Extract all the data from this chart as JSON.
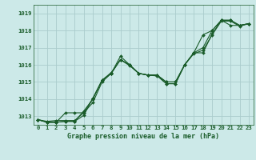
{
  "title": "Graphe pression niveau de la mer (hPa)",
  "bg_color": "#cce9e8",
  "grid_color": "#aacccc",
  "line_color": "#1a5c2a",
  "xlim": [
    -0.5,
    23.5
  ],
  "ylim": [
    1012.5,
    1019.5
  ],
  "xticks": [
    0,
    1,
    2,
    3,
    4,
    5,
    6,
    7,
    8,
    9,
    10,
    11,
    12,
    13,
    14,
    15,
    16,
    17,
    18,
    19,
    20,
    21,
    22,
    23
  ],
  "yticks": [
    1013,
    1014,
    1015,
    1016,
    1017,
    1018,
    1019
  ],
  "series": [
    [
      1012.8,
      1012.7,
      1012.75,
      1012.75,
      1012.75,
      1013.2,
      1013.8,
      1015.0,
      1015.5,
      1016.3,
      1016.0,
      1015.5,
      1015.4,
      1015.4,
      1015.0,
      1015.0,
      1016.0,
      1016.7,
      1017.75,
      1018.0,
      1018.6,
      1018.3,
      1018.3,
      1018.4
    ],
    [
      1012.8,
      1012.65,
      1012.65,
      1012.7,
      1012.7,
      1013.3,
      1014.0,
      1015.1,
      1015.55,
      1016.3,
      1015.95,
      1015.5,
      1015.4,
      1015.4,
      1014.9,
      1014.9,
      1016.0,
      1016.7,
      1017.0,
      1018.0,
      1018.6,
      1018.6,
      1018.3,
      1018.4
    ],
    [
      1012.8,
      1012.65,
      1012.65,
      1013.2,
      1013.2,
      1013.2,
      1014.05,
      1015.1,
      1015.5,
      1016.5,
      1016.0,
      1015.5,
      1015.4,
      1015.4,
      1015.0,
      1015.0,
      1016.0,
      1016.7,
      1016.7,
      1017.8,
      1018.6,
      1018.6,
      1018.3,
      1018.4
    ],
    [
      1012.8,
      1012.65,
      1012.65,
      1012.7,
      1012.7,
      1013.05,
      1014.05,
      1015.1,
      1015.5,
      1016.3,
      1016.0,
      1015.5,
      1015.4,
      1015.35,
      1014.9,
      1014.9,
      1016.0,
      1016.65,
      1016.85,
      1017.75,
      1018.55,
      1018.55,
      1018.25,
      1018.4
    ]
  ],
  "xlabel_fontsize": 6.0,
  "tick_fontsize": 5.2,
  "linewidth": 0.8,
  "markersize": 2.0
}
